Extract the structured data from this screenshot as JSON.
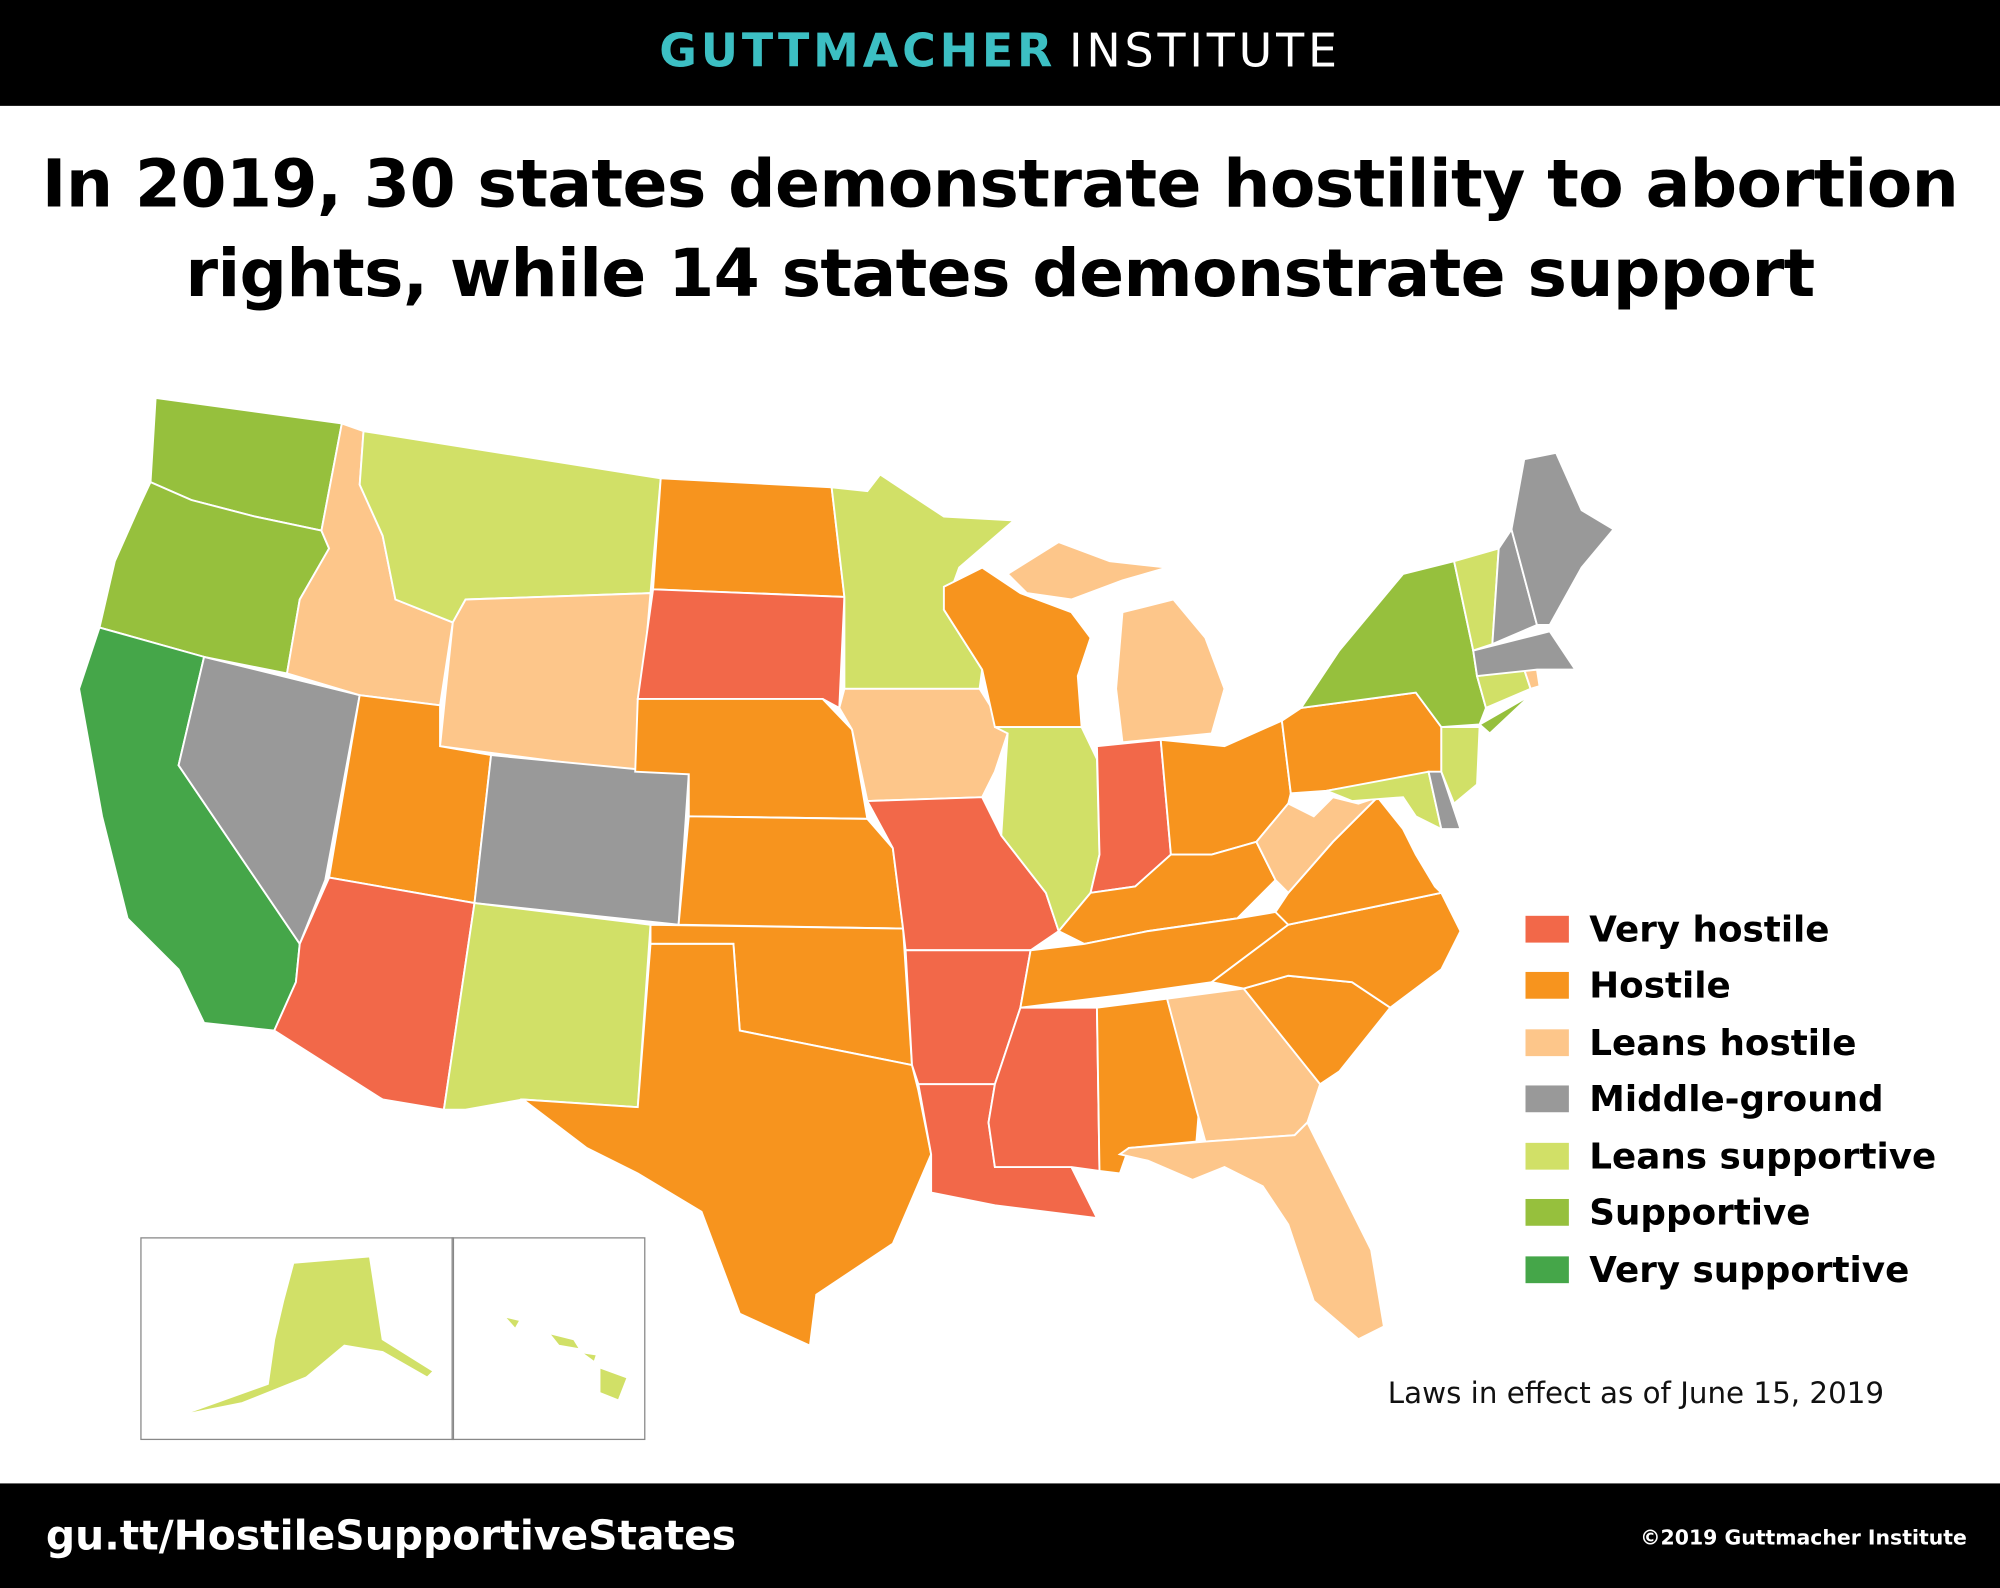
{
  "header": {
    "brand_bold": "GUTTMACHER",
    "brand_light": "INSTITUTE"
  },
  "title": {
    "line1": "In 2019, 30 states demonstrate hostility to abortion",
    "line2": "rights, while 14 states demonstrate support"
  },
  "legend": [
    {
      "label": "Very hostile",
      "key": "very_hostile",
      "color": "#F26849"
    },
    {
      "label": "Hostile",
      "key": "hostile",
      "color": "#F7941E"
    },
    {
      "label": "Leans hostile",
      "key": "leans_hostile",
      "color": "#FDC68A"
    },
    {
      "label": "Middle-ground",
      "key": "middle",
      "color": "#999999"
    },
    {
      "label": "Leans supportive",
      "key": "leans_supportive",
      "color": "#D1E067"
    },
    {
      "label": "Supportive",
      "key": "supportive",
      "color": "#96C03D"
    },
    {
      "label": "Very supportive",
      "key": "very_supportive",
      "color": "#45A649"
    }
  ],
  "states": {
    "very_hostile": [
      "SD",
      "MO",
      "AR",
      "LA",
      "MS",
      "IN",
      "AZ"
    ],
    "hostile": [
      "ND",
      "NE",
      "KS",
      "OK",
      "TX",
      "UT",
      "WI",
      "OH",
      "KY",
      "TN",
      "AL",
      "SC",
      "NC",
      "VA",
      "PA"
    ],
    "leans_hostile": [
      "ID",
      "WY",
      "IA",
      "MI",
      "WV",
      "GA",
      "FL",
      "RI"
    ],
    "middle": [
      "NV",
      "CO",
      "NH",
      "ME",
      "MA",
      "DE"
    ],
    "leans_supportive": [
      "MT",
      "NM",
      "MN",
      "IL",
      "VT",
      "CT",
      "NJ",
      "MD",
      "AK",
      "HI"
    ],
    "supportive": [
      "WA",
      "OR",
      "NY"
    ],
    "very_supportive": [
      "CA"
    ]
  },
  "note": "Laws in effect as of June 15, 2019",
  "footer": {
    "url": "gu.tt/HostileSupportiveStates",
    "copyright": "©2019 Guttmacher Institute"
  }
}
